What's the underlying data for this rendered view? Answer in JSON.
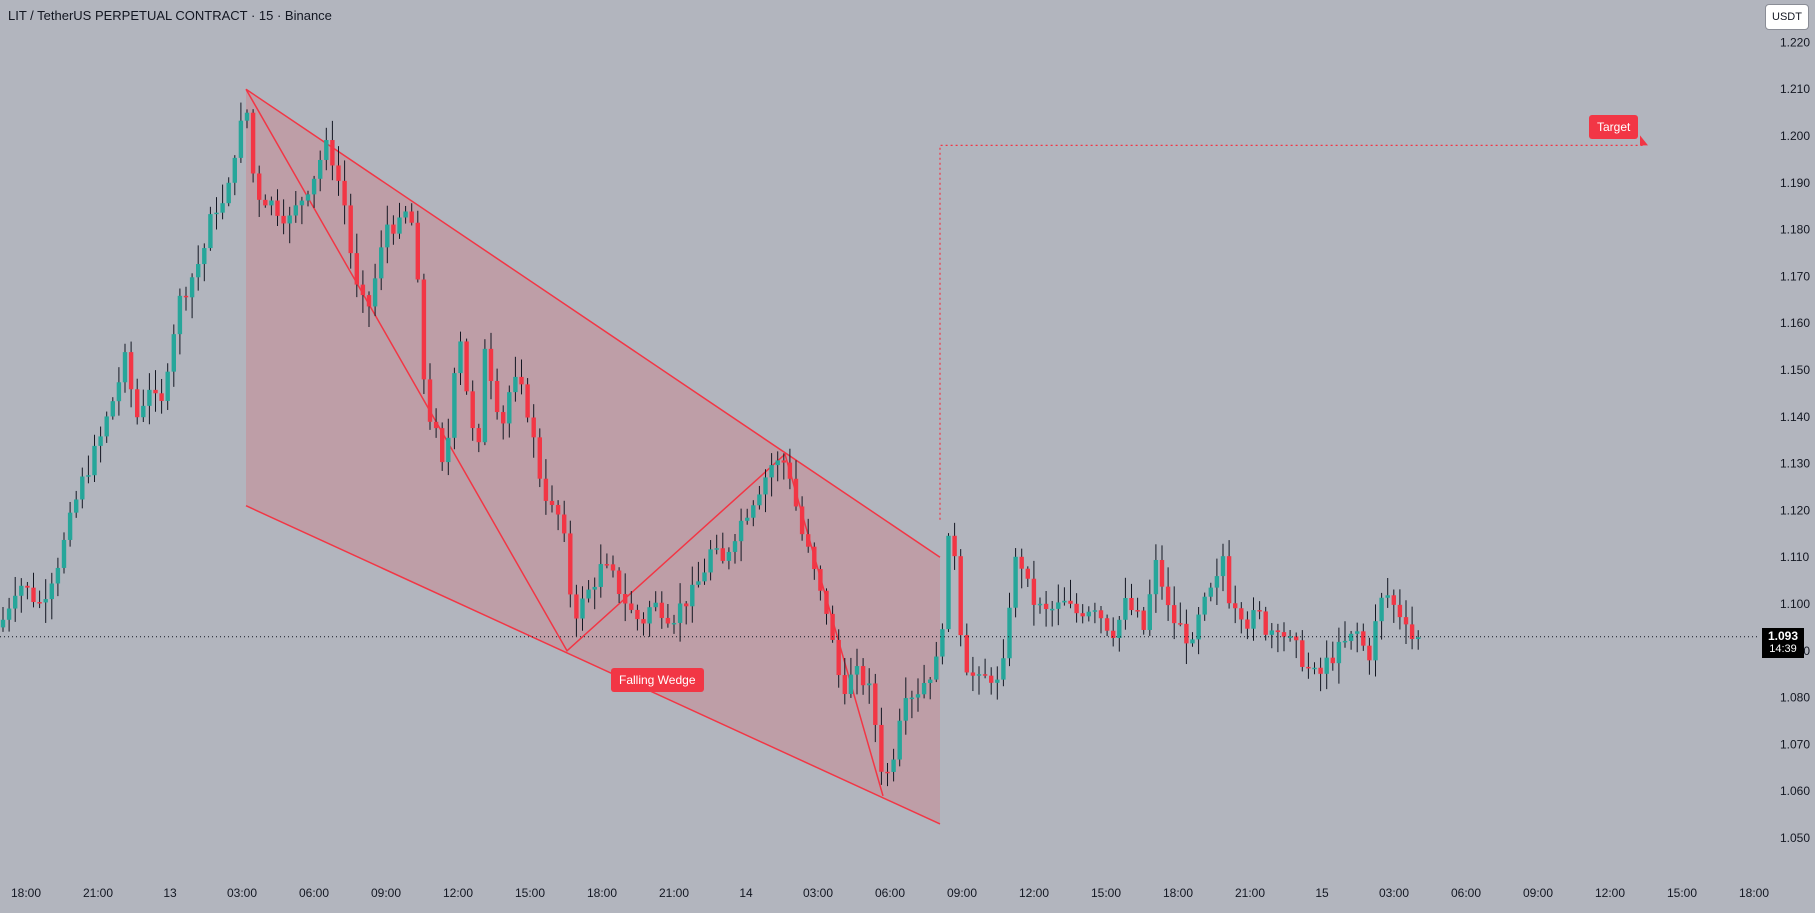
{
  "header": {
    "title": "LIT / TetherUS PERPETUAL CONTRACT · 15 · Binance"
  },
  "toolbar": {
    "currency": "USDT"
  },
  "last_price": {
    "price": "1.093",
    "countdown": "14:39"
  },
  "annotations": {
    "pattern_label": "Falling Wedge",
    "target_label": "Target"
  },
  "colors": {
    "background": "#b2b5be",
    "up": "#26a69a",
    "down": "#f23645",
    "pattern": "#f23645"
  },
  "chart_data": {
    "type": "candlestick",
    "title": "LIT / TetherUS PERPETUAL CONTRACT · 15 · Binance",
    "interval": "15",
    "ylim": [
      1.045,
      1.225
    ],
    "y_ticks": [
      "1.220",
      "1.210",
      "1.200",
      "1.190",
      "1.180",
      "1.170",
      "1.160",
      "1.150",
      "1.140",
      "1.130",
      "1.120",
      "1.110",
      "1.100",
      "1.090",
      "1.080",
      "1.070",
      "1.060",
      "1.050"
    ],
    "x_ticks": [
      "18:00",
      "21:00",
      "13",
      "03:00",
      "06:00",
      "09:00",
      "12:00",
      "15:00",
      "18:00",
      "21:00",
      "14",
      "03:00",
      "06:00",
      "09:00",
      "12:00",
      "15:00",
      "18:00",
      "21:00",
      "15",
      "03:00",
      "06:00",
      "09:00",
      "12:00",
      "15:00",
      "18:00"
    ],
    "last_price": 1.093,
    "target": 1.198,
    "price_path": [
      [
        0,
        1.095
      ],
      [
        18,
        1.105
      ],
      [
        40,
        1.1
      ],
      [
        60,
        1.11
      ],
      [
        80,
        1.125
      ],
      [
        100,
        1.135
      ],
      [
        115,
        1.145
      ],
      [
        125,
        1.152
      ],
      [
        137,
        1.14
      ],
      [
        150,
        1.147
      ],
      [
        160,
        1.14
      ],
      [
        170,
        1.155
      ],
      [
        180,
        1.165
      ],
      [
        192,
        1.17
      ],
      [
        203,
        1.175
      ],
      [
        214,
        1.185
      ],
      [
        226,
        1.185
      ],
      [
        237,
        1.2
      ],
      [
        247,
        1.205
      ],
      [
        255,
        1.188
      ],
      [
        270,
        1.186
      ],
      [
        290,
        1.182
      ],
      [
        300,
        1.186
      ],
      [
        315,
        1.192
      ],
      [
        325,
        1.198
      ],
      [
        333,
        1.195
      ],
      [
        345,
        1.185
      ],
      [
        355,
        1.168
      ],
      [
        367,
        1.162
      ],
      [
        378,
        1.172
      ],
      [
        388,
        1.182
      ],
      [
        398,
        1.18
      ],
      [
        410,
        1.185
      ],
      [
        417,
        1.17
      ],
      [
        425,
        1.145
      ],
      [
        432,
        1.138
      ],
      [
        438,
        1.135
      ],
      [
        445,
        1.125
      ],
      [
        452,
        1.148
      ],
      [
        460,
        1.158
      ],
      [
        470,
        1.14
      ],
      [
        478,
        1.13
      ],
      [
        485,
        1.156
      ],
      [
        492,
        1.148
      ],
      [
        502,
        1.138
      ],
      [
        512,
        1.148
      ],
      [
        522,
        1.145
      ],
      [
        530,
        1.14
      ],
      [
        537,
        1.13
      ],
      [
        543,
        1.125
      ],
      [
        552,
        1.12
      ],
      [
        562,
        1.118
      ],
      [
        568,
        1.105
      ],
      [
        575,
        1.098
      ],
      [
        582,
        1.1
      ],
      [
        592,
        1.104
      ],
      [
        602,
        1.108
      ],
      [
        612,
        1.106
      ],
      [
        622,
        1.102
      ],
      [
        632,
        1.098
      ],
      [
        642,
        1.096
      ],
      [
        652,
        1.1
      ],
      [
        662,
        1.099
      ],
      [
        672,
        1.097
      ],
      [
        682,
        1.1
      ],
      [
        692,
        1.102
      ],
      [
        702,
        1.106
      ],
      [
        712,
        1.112
      ],
      [
        722,
        1.108
      ],
      [
        732,
        1.114
      ],
      [
        742,
        1.118
      ],
      [
        752,
        1.122
      ],
      [
        762,
        1.126
      ],
      [
        772,
        1.13
      ],
      [
        782,
        1.13
      ],
      [
        787,
        1.131
      ],
      [
        795,
        1.122
      ],
      [
        802,
        1.115
      ],
      [
        810,
        1.11
      ],
      [
        820,
        1.102
      ],
      [
        828,
        1.098
      ],
      [
        835,
        1.088
      ],
      [
        842,
        1.082
      ],
      [
        850,
        1.084
      ],
      [
        858,
        1.085
      ],
      [
        866,
        1.083
      ],
      [
        872,
        1.08
      ],
      [
        878,
        1.07
      ],
      [
        884,
        1.062
      ],
      [
        892,
        1.066
      ],
      [
        898,
        1.075
      ],
      [
        905,
        1.082
      ],
      [
        912,
        1.081
      ],
      [
        920,
        1.082
      ],
      [
        928,
        1.085
      ],
      [
        935,
        1.086
      ],
      [
        941,
        1.092
      ],
      [
        945,
        1.105
      ],
      [
        951,
        1.118
      ],
      [
        958,
        1.105
      ],
      [
        962,
        1.09
      ],
      [
        970,
        1.085
      ],
      [
        980,
        1.083
      ],
      [
        990,
        1.085
      ],
      [
        1000,
        1.082
      ],
      [
        1006,
        1.09
      ],
      [
        1012,
        1.108
      ],
      [
        1020,
        1.11
      ],
      [
        1027,
        1.104
      ],
      [
        1035,
        1.1
      ],
      [
        1045,
        1.098
      ],
      [
        1055,
        1.099
      ],
      [
        1065,
        1.1
      ],
      [
        1075,
        1.098
      ],
      [
        1085,
        1.099
      ],
      [
        1095,
        1.1
      ],
      [
        1105,
        1.096
      ],
      [
        1115,
        1.094
      ],
      [
        1125,
        1.1
      ],
      [
        1135,
        1.098
      ],
      [
        1145,
        1.094
      ],
      [
        1152,
        1.105
      ],
      [
        1158,
        1.11
      ],
      [
        1165,
        1.1
      ],
      [
        1175,
        1.096
      ],
      [
        1185,
        1.094
      ],
      [
        1192,
        1.09
      ],
      [
        1200,
        1.098
      ],
      [
        1210,
        1.102
      ],
      [
        1218,
        1.105
      ],
      [
        1222,
        1.112
      ],
      [
        1228,
        1.102
      ],
      [
        1238,
        1.1
      ],
      [
        1248,
        1.096
      ],
      [
        1258,
        1.098
      ],
      [
        1268,
        1.094
      ],
      [
        1278,
        1.096
      ],
      [
        1288,
        1.092
      ],
      [
        1298,
        1.09
      ],
      [
        1308,
        1.086
      ],
      [
        1318,
        1.084
      ],
      [
        1328,
        1.088
      ],
      [
        1338,
        1.09
      ],
      [
        1348,
        1.092
      ],
      [
        1358,
        1.094
      ],
      [
        1368,
        1.088
      ],
      [
        1378,
        1.098
      ],
      [
        1385,
        1.103
      ],
      [
        1392,
        1.1
      ],
      [
        1400,
        1.098
      ],
      [
        1408,
        1.097
      ],
      [
        1414,
        1.091
      ],
      [
        1420,
        1.093
      ]
    ],
    "pattern": {
      "name": "Falling Wedge",
      "upper": [
        [
          246,
          1.21
        ],
        [
          940,
          1.11
        ]
      ],
      "lower": [
        [
          246,
          1.121
        ],
        [
          940,
          1.053
        ]
      ],
      "zigzag": [
        [
          246,
          1.21
        ],
        [
          567,
          1.09
        ],
        [
          785,
          1.132
        ],
        [
          883,
          1.059
        ]
      ]
    }
  }
}
